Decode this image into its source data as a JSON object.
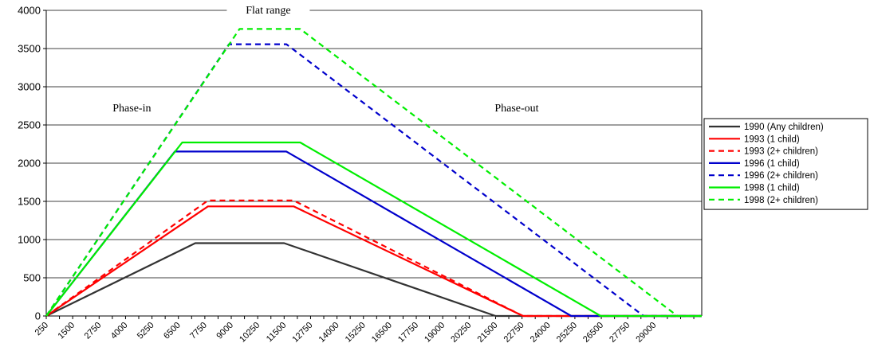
{
  "chart_data": {
    "type": "line",
    "title": "",
    "xlabel": "",
    "ylabel": "",
    "xlim": [
      250,
      31250
    ],
    "ylim": [
      0,
      4000
    ],
    "y_ticks": [
      0,
      500,
      1000,
      1500,
      2000,
      2500,
      3000,
      3500,
      4000
    ],
    "x_ticks": [
      250,
      1500,
      2750,
      4000,
      5250,
      6500,
      7750,
      9000,
      10250,
      11500,
      12750,
      14000,
      15250,
      16500,
      17750,
      19000,
      20250,
      21500,
      22750,
      24000,
      25250,
      26500,
      27750,
      29000
    ],
    "grid": "horizontal",
    "legend_position": "right",
    "annotations": [
      {
        "text": "Flat range",
        "x": 10750,
        "y": 3980
      },
      {
        "text": "Phase-in",
        "x": 4300,
        "y": 2700
      },
      {
        "text": "Phase-out",
        "x": 22500,
        "y": 2700
      }
    ],
    "series": [
      {
        "name": "1990 (Any children)",
        "color": "#333333",
        "dash": "solid",
        "x": [
          250,
          7300,
          11500,
          21500,
          31250
        ],
        "y": [
          0,
          953,
          953,
          0,
          0
        ]
      },
      {
        "name": "1993 (1 child)",
        "color": "#ff0000",
        "dash": "solid",
        "x": [
          250,
          7900,
          11950,
          22800,
          31250
        ],
        "y": [
          0,
          1434,
          1434,
          0,
          0
        ]
      },
      {
        "name": "1993 (2+ children)",
        "color": "#ff0000",
        "dash": "dashed",
        "x": [
          250,
          7900,
          11950,
          22800,
          31250
        ],
        "y": [
          0,
          1511,
          1511,
          0,
          0
        ]
      },
      {
        "name": "1996 (1 child)",
        "color": "#0000cc",
        "dash": "solid",
        "x": [
          250,
          6330,
          11610,
          25080,
          31250
        ],
        "y": [
          0,
          2152,
          2152,
          0,
          0
        ]
      },
      {
        "name": "1996 (2+ children)",
        "color": "#0000cc",
        "dash": "dashed",
        "x": [
          250,
          8890,
          11610,
          28500,
          31250
        ],
        "y": [
          0,
          3556,
          3556,
          0,
          0
        ]
      },
      {
        "name": "1998 (1 child)",
        "color": "#00ee00",
        "dash": "solid",
        "x": [
          250,
          6680,
          12260,
          26470,
          31250
        ],
        "y": [
          0,
          2271,
          2271,
          0,
          0
        ]
      },
      {
        "name": "1998 (2+ children)",
        "color": "#00ee00",
        "dash": "dashed",
        "x": [
          250,
          9390,
          12260,
          30100,
          31250
        ],
        "y": [
          0,
          3756,
          3756,
          0,
          0
        ]
      }
    ]
  }
}
